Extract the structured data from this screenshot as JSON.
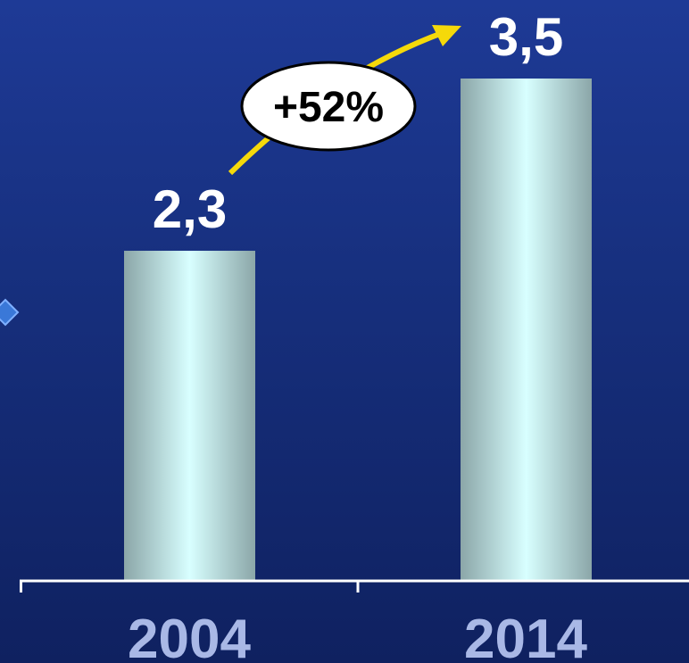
{
  "chart_data": {
    "type": "bar",
    "categories": [
      "2004",
      "2014"
    ],
    "values": [
      2.3,
      3.5
    ],
    "value_labels": [
      "2,3",
      "3,5"
    ],
    "change_label": "+52%",
    "title": "",
    "xlabel": "",
    "ylabel": "",
    "ylim": [
      0,
      4
    ],
    "grid": false,
    "colors": {
      "bar_edge": "#8ba6a8",
      "bar_center": "#d8ffff",
      "arrow": "#f5d90a",
      "tick_label": "#a9b8e6",
      "value_label": "#ffffff",
      "axis": "#ffffff"
    }
  }
}
